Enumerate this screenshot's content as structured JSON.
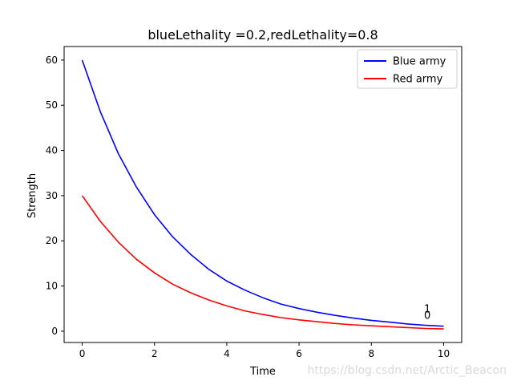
{
  "chart_data": {
    "type": "line",
    "title": "blueLethality =0.2,redLethality=0.8",
    "xlabel": "Time",
    "ylabel": "Strength",
    "xlim": [
      -0.5,
      10.5
    ],
    "ylim": [
      -2.5,
      63
    ],
    "xticks": [
      0,
      2,
      4,
      6,
      8,
      10
    ],
    "yticks": [
      0,
      10,
      20,
      30,
      40,
      50,
      60
    ],
    "legend_position": "upper-right",
    "series": [
      {
        "name": "Blue army",
        "color": "#0000ff",
        "x": [
          0,
          0.5,
          1,
          1.5,
          2,
          2.5,
          3,
          3.5,
          4,
          4.5,
          5,
          5.5,
          6,
          6.5,
          7,
          7.5,
          8,
          8.5,
          9,
          9.5,
          10
        ],
        "values": [
          60,
          48.6,
          39.3,
          31.9,
          25.8,
          20.9,
          17.0,
          13.7,
          11.1,
          9.1,
          7.4,
          6.0,
          5.0,
          4.2,
          3.5,
          2.9,
          2.4,
          2.0,
          1.6,
          1.3,
          1.1
        ]
      },
      {
        "name": "Red army",
        "color": "#ff0000",
        "x": [
          0,
          0.5,
          1,
          1.5,
          2,
          2.5,
          3,
          3.5,
          4,
          4.5,
          5,
          5.5,
          6,
          6.5,
          7,
          7.5,
          8,
          8.5,
          9,
          9.5,
          10
        ],
        "values": [
          30,
          24.3,
          19.7,
          15.9,
          12.9,
          10.4,
          8.5,
          6.9,
          5.6,
          4.5,
          3.7,
          3.0,
          2.5,
          2.1,
          1.7,
          1.4,
          1.2,
          1.0,
          0.8,
          0.6,
          0.5
        ]
      }
    ],
    "annotations": [
      {
        "text": "1",
        "x": 9.55,
        "y": 4.0
      },
      {
        "text": "0",
        "x": 9.55,
        "y": 3.6
      }
    ]
  },
  "watermark": "https://blog.csdn.net/Arctic_Beacon"
}
